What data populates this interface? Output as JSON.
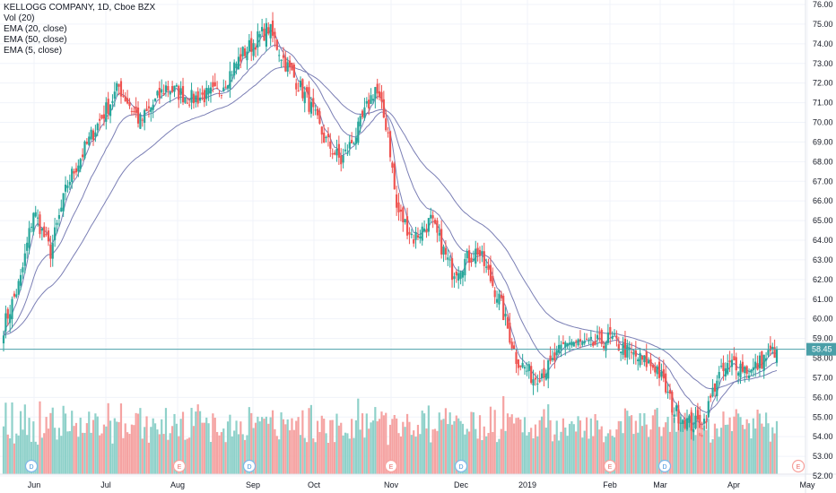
{
  "legend": {
    "symbol": "KELLOGG COMPANY, 1D, Cboe BZX",
    "vol": "Vol (20)",
    "ema20": "EMA (20, close)",
    "ema50": "EMA (50, close)",
    "ema5": "EMA (5, close)"
  },
  "colors": {
    "up": "#26a69a",
    "down": "#ef5350",
    "vol_up": "#8fd1ca",
    "vol_down": "#f5a3a2",
    "ema": "#7b7fb5",
    "last_price": "#4a9fa8",
    "grid": "#f0f3fa",
    "axis_text": "#131722"
  },
  "chart_data": {
    "type": "candlestick",
    "y_axis": {
      "min": 52.0,
      "max": 76.0,
      "ticks": [
        "76.00",
        "75.00",
        "74.00",
        "73.00",
        "72.00",
        "71.00",
        "70.00",
        "69.00",
        "68.00",
        "67.00",
        "66.00",
        "65.00",
        "64.00",
        "63.00",
        "62.00",
        "61.00",
        "60.00",
        "59.00",
        "58.00",
        "57.00",
        "56.00",
        "55.00",
        "54.00",
        "53.00",
        "52.00"
      ]
    },
    "x_axis": {
      "labels": [
        "Jun",
        "Jul",
        "Aug",
        "Sep",
        "Oct",
        "Nov",
        "Dec",
        "2019",
        "Feb",
        "Mar",
        "Apr",
        "May"
      ]
    },
    "last_price": "58.45",
    "events": [
      {
        "label": "D",
        "month": "Jun"
      },
      {
        "label": "E",
        "month": "Aug"
      },
      {
        "label": "D",
        "month": "Sep"
      },
      {
        "label": "E",
        "month": "Nov"
      },
      {
        "label": "D",
        "month": "Dec"
      },
      {
        "label": "E",
        "month": "Feb"
      },
      {
        "label": "D",
        "month": "Mar"
      },
      {
        "label": "E",
        "month": "May"
      }
    ],
    "keypoints": [
      [
        0,
        59.6
      ],
      [
        8,
        62.0
      ],
      [
        14,
        65.5
      ],
      [
        22,
        63.4
      ],
      [
        30,
        66.9
      ],
      [
        42,
        69.5
      ],
      [
        54,
        71.8
      ],
      [
        64,
        70.0
      ],
      [
        76,
        71.8
      ],
      [
        88,
        71.2
      ],
      [
        100,
        71.5
      ],
      [
        112,
        73.5
      ],
      [
        124,
        74.8
      ],
      [
        132,
        73.0
      ],
      [
        142,
        71.2
      ],
      [
        150,
        69.2
      ],
      [
        158,
        68.0
      ],
      [
        166,
        69.6
      ],
      [
        174,
        71.8
      ],
      [
        180,
        69.5
      ],
      [
        184,
        65.6
      ],
      [
        192,
        64.1
      ],
      [
        200,
        65.0
      ],
      [
        210,
        62.4
      ],
      [
        222,
        63.5
      ],
      [
        232,
        61.0
      ],
      [
        240,
        58.0
      ],
      [
        248,
        57.0
      ],
      [
        256,
        57.6
      ],
      [
        264,
        58.9
      ],
      [
        274,
        58.6
      ],
      [
        284,
        59.0
      ],
      [
        292,
        58.3
      ],
      [
        300,
        57.8
      ],
      [
        306,
        57.5
      ],
      [
        314,
        55.3
      ],
      [
        322,
        54.6
      ],
      [
        328,
        54.8
      ],
      [
        334,
        57.0
      ],
      [
        342,
        57.8
      ],
      [
        350,
        57.3
      ],
      [
        356,
        58.0
      ],
      [
        362,
        58.45
      ]
    ],
    "volume_max": 13
  }
}
